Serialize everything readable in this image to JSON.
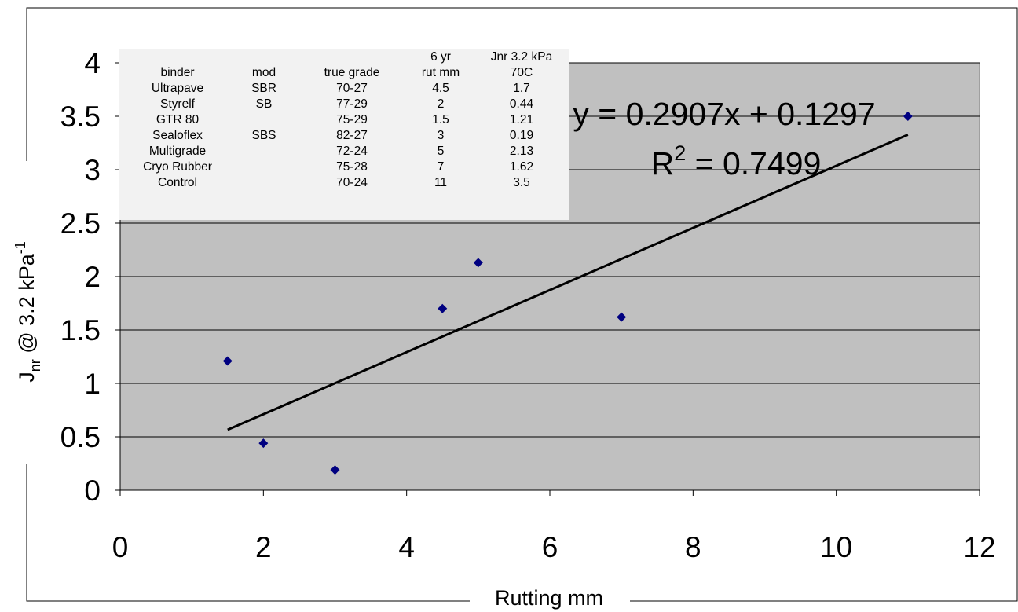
{
  "chart_data": {
    "type": "scatter",
    "xlabel": "Rutting mm",
    "ylabel": "J",
    "ylabel_sub": "nr",
    "ylabel_mid": " @ 3.2 kPa",
    "ylabel_sup": "-1",
    "xlim": [
      0,
      12
    ],
    "ylim": [
      0,
      4
    ],
    "x_ticks": [
      "0",
      "2",
      "4",
      "6",
      "8",
      "10",
      "12"
    ],
    "y_ticks": [
      "0",
      "0.5",
      "1",
      "1.5",
      "2",
      "2.5",
      "3",
      "3.5",
      "4"
    ],
    "grid": "horizontal",
    "plot_background": "#c0c0c0",
    "marker_color": "#000080",
    "points": [
      {
        "x": 4.5,
        "y": 1.7
      },
      {
        "x": 2,
        "y": 0.44
      },
      {
        "x": 1.5,
        "y": 1.21
      },
      {
        "x": 3,
        "y": 0.19
      },
      {
        "x": 5,
        "y": 2.13
      },
      {
        "x": 7,
        "y": 1.62
      },
      {
        "x": 11,
        "y": 3.5
      }
    ],
    "trendline": {
      "slope": 0.2907,
      "intercept": 0.1297,
      "x_range": [
        1.5,
        11
      ],
      "equation": "y = 0.2907x + 0.1297",
      "r2_prefix": "R",
      "r2_sup": "2",
      "r2_value": " = 0.7499"
    },
    "inset_table": {
      "header_top": [
        "",
        "",
        "",
        "6 yr",
        "Jnr 3.2 kPa"
      ],
      "header": [
        "binder",
        "mod",
        "true grade",
        "rut mm",
        "70C"
      ],
      "rows": [
        [
          "Ultrapave",
          "SBR",
          "70-27",
          "4.5",
          "1.7"
        ],
        [
          "Styrelf",
          "SB",
          "77-29",
          "2",
          "0.44"
        ],
        [
          "GTR 80",
          "",
          "75-29",
          "1.5",
          "1.21"
        ],
        [
          "Sealoflex",
          "SBS",
          "82-27",
          "3",
          "0.19"
        ],
        [
          "Multigrade",
          "",
          "72-24",
          "5",
          "2.13"
        ],
        [
          "Cryo Rubber",
          "",
          "75-28",
          "7",
          "1.62"
        ],
        [
          "Control",
          "",
          "70-24",
          "11",
          "3.5"
        ]
      ]
    }
  }
}
